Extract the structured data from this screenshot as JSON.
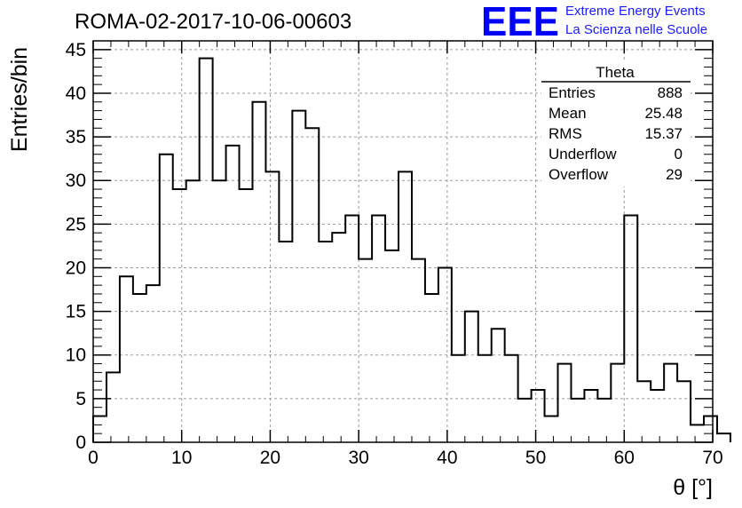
{
  "chart_data": {
    "type": "bar",
    "title": "ROMA-02-2017-10-06-00603",
    "xlabel": "θ [°]",
    "ylabel": "Entries/bin",
    "xlim": [
      0,
      70
    ],
    "ylim": [
      0,
      46
    ],
    "grid": true,
    "bin_width": 1.5,
    "x_ticks": [
      0,
      10,
      20,
      30,
      40,
      50,
      60,
      70
    ],
    "y_ticks": [
      0,
      5,
      10,
      15,
      20,
      25,
      30,
      35,
      40,
      45
    ],
    "values": [
      3,
      8,
      19,
      17,
      18,
      33,
      29,
      30,
      44,
      30,
      34,
      29,
      39,
      31,
      23,
      38,
      36,
      23,
      24,
      26,
      21,
      26,
      22,
      31,
      21,
      17,
      20,
      10,
      15,
      10,
      13,
      10,
      5,
      6,
      3,
      9,
      5,
      6,
      5,
      9,
      26,
      7,
      6,
      9,
      7,
      2,
      3,
      1
    ],
    "line_color": "#000000"
  },
  "stats_box": {
    "name": "Theta",
    "rows": [
      {
        "label": "Entries",
        "value": "888"
      },
      {
        "label": "Mean",
        "value": "25.48"
      },
      {
        "label": "RMS",
        "value": "15.37"
      },
      {
        "label": "Underflow",
        "value": "0"
      },
      {
        "label": "Overflow",
        "value": "29"
      }
    ]
  },
  "logo": {
    "mark": "EEE",
    "line1": "Extreme Energy Events",
    "line2": "La Scienza nelle Scuole",
    "color": "#0000ff"
  }
}
